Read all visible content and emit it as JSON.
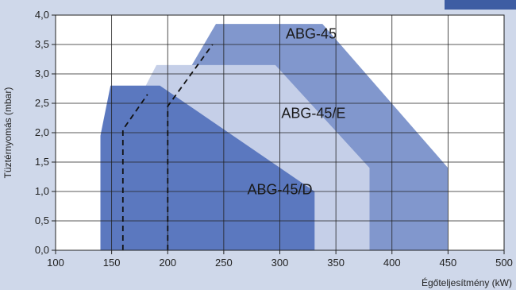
{
  "chart_data": {
    "type": "area",
    "xlabel": "Égőteljesítmény (kW)",
    "ylabel": "Tüztérnyomás (mbar)",
    "xlim": [
      100,
      500
    ],
    "ylim": [
      0,
      4
    ],
    "x_ticks": [
      "100",
      "150",
      "200",
      "250",
      "300",
      "350",
      "400",
      "450",
      "500"
    ],
    "y_ticks": [
      "0,0",
      "0,5",
      "1,0",
      "1,5",
      "2,0",
      "2,5",
      "3,0",
      "3,5",
      "4,0"
    ],
    "grid": true,
    "series": [
      {
        "name": "ABG-45",
        "color": "#8197cd",
        "points": [
          [
            200,
            0
          ],
          [
            200,
            2.45
          ],
          [
            243,
            3.85
          ],
          [
            338,
            3.85
          ],
          [
            450,
            1.4
          ],
          [
            450,
            0
          ]
        ]
      },
      {
        "name": "ABG-45/E",
        "color": "#c5cfe8",
        "points": [
          [
            160,
            0
          ],
          [
            160,
            2.05
          ],
          [
            190,
            3.15
          ],
          [
            296,
            3.15
          ],
          [
            380,
            1.4
          ],
          [
            380,
            0
          ]
        ]
      },
      {
        "name": "ABG-45/D",
        "color": "#5b78bf",
        "points": [
          [
            140,
            0
          ],
          [
            140,
            1.95
          ],
          [
            149,
            2.8
          ],
          [
            193,
            2.8
          ],
          [
            331,
            1.0
          ],
          [
            331,
            0
          ]
        ]
      }
    ],
    "dashed_lines": [
      [
        [
          160,
          0
        ],
        [
          160,
          2.05
        ],
        [
          182,
          2.65
        ]
      ],
      [
        [
          200,
          0
        ],
        [
          200,
          2.45
        ],
        [
          240,
          3.5
        ]
      ]
    ],
    "labels": [
      {
        "text": "ABG-45",
        "x": 328,
        "y": 3.6
      },
      {
        "text": "ABG-45/E",
        "x": 330,
        "y": 2.25
      },
      {
        "text": "ABG-45/D",
        "x": 300,
        "y": 0.95
      }
    ]
  }
}
